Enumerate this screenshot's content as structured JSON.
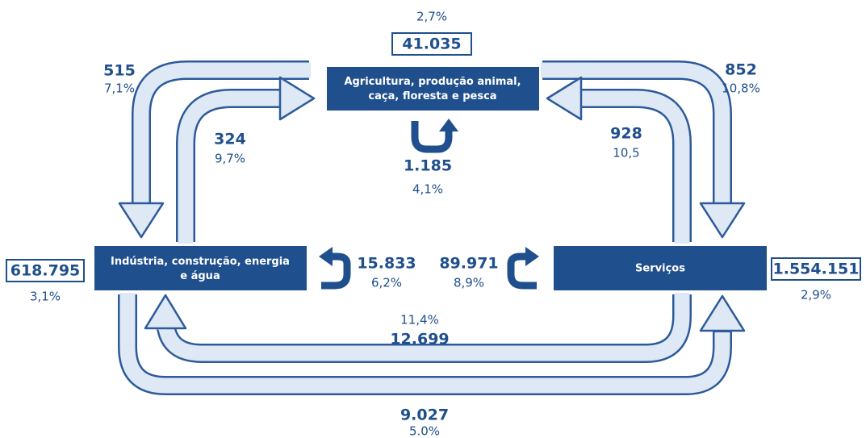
{
  "nodes": [
    {
      "label": "Agricultura, produção animal, caça, floresta e pesca",
      "total": "41.035",
      "share": "2,7%",
      "internal": "1.185",
      "internal_share": "4,1%"
    },
    {
      "label": "Indústria, construção, energia e água",
      "total": "618.795",
      "share": "3,1%",
      "internal": "15.833",
      "internal_share": "6,2%"
    },
    {
      "label": "Serviços",
      "total": "1.554.151",
      "share": "2,9%",
      "internal": "89.971",
      "internal_share": "8,9%"
    }
  ],
  "flows": [
    {
      "value": "515",
      "share": "7,1%"
    },
    {
      "value": "324",
      "share": "9,7%"
    },
    {
      "value": "852",
      "share": "10,8%"
    },
    {
      "value": "928",
      "share": "10,5"
    },
    {
      "value": "12.699",
      "share": "11,4%"
    },
    {
      "value": "9.027",
      "share": "5.0%"
    }
  ]
}
